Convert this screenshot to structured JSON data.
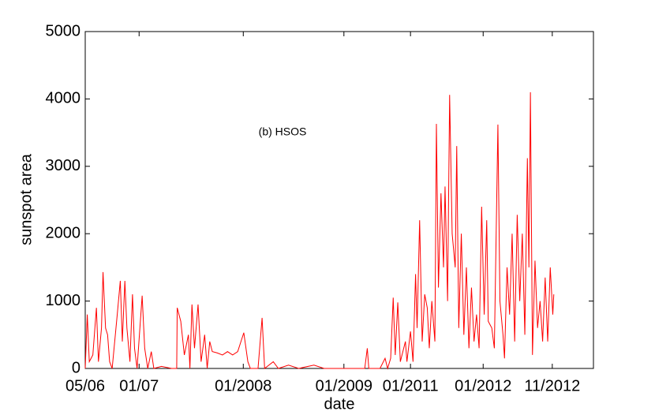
{
  "chart_data": {
    "type": "line",
    "annotation": "(b) HSOS",
    "xlabel": "date",
    "ylabel": "sunspot area",
    "xlim": [
      0,
      100
    ],
    "ylim": [
      0,
      5000
    ],
    "xticks": [
      {
        "value": 0,
        "label": "05/06"
      },
      {
        "value": 10.6,
        "label": "01/07"
      },
      {
        "value": 31.1,
        "label": "01/2008"
      },
      {
        "value": 50.9,
        "label": "01/2009"
      },
      {
        "value": 64.0,
        "label": "01/2011"
      },
      {
        "value": 78.3,
        "label": "01/2012"
      },
      {
        "value": 91.9,
        "label": "11/2012"
      }
    ],
    "yticks": [
      0,
      1000,
      2000,
      3000,
      4000,
      5000
    ],
    "series": [
      {
        "color": "#ff0000",
        "x": [
          0,
          0.4,
          0.8,
          1.5,
          2.2,
          2.6,
          3.2,
          3.5,
          4.0,
          4.4,
          4.8,
          5.3,
          6.3,
          6.9,
          7.3,
          7.8,
          8.2,
          8.8,
          9.3,
          9.7,
          10.2,
          11.2,
          11.7,
          12.3,
          13,
          13.5,
          15,
          17,
          18,
          18.1,
          18.8,
          19.5,
          20.3,
          20.6,
          21.0,
          21.5,
          22.2,
          22.8,
          23.5,
          24,
          24.5,
          25,
          26,
          27,
          28,
          29,
          30,
          31.2,
          32,
          32.5,
          34,
          34.8,
          35.3,
          37,
          38,
          40,
          42,
          45,
          47,
          50,
          52,
          55,
          55.5,
          55.8,
          58,
          59,
          59.5,
          60.1,
          60.6,
          61,
          61.5,
          62,
          63,
          63.3,
          64,
          64.5,
          65,
          65.3,
          65.8,
          66.3,
          66.8,
          67.3,
          67.7,
          68.2,
          68.8,
          69.1,
          69.5,
          70,
          70.5,
          70.8,
          71.3,
          71.7,
          72.2,
          72.8,
          73.1,
          73.5,
          74,
          74.5,
          75,
          75.5,
          76,
          76.5,
          77,
          77.5,
          78,
          78.5,
          79,
          79.3,
          80,
          80.5,
          81.2,
          81.6,
          82.2,
          82.5,
          83,
          83.5,
          84,
          84.5,
          85,
          85.5,
          86,
          86.5,
          87,
          87.3,
          87.6,
          88,
          88.5,
          89,
          89.5,
          90,
          90.5,
          91,
          91.5,
          92,
          92.2
        ],
        "values": [
          0,
          800,
          100,
          200,
          900,
          100,
          600,
          1430,
          600,
          500,
          100,
          0,
          800,
          1300,
          400,
          1300,
          600,
          100,
          1100,
          300,
          0,
          1080,
          300,
          0,
          250,
          0,
          30,
          0,
          0,
          900,
          700,
          200,
          500,
          0,
          950,
          300,
          950,
          100,
          500,
          0,
          400,
          250,
          230,
          200,
          250,
          200,
          250,
          530,
          100,
          0,
          0,
          750,
          0,
          100,
          0,
          50,
          0,
          50,
          0,
          0,
          0,
          0,
          300,
          0,
          0,
          150,
          0,
          150,
          1050,
          200,
          980,
          100,
          400,
          100,
          550,
          100,
          1400,
          600,
          2200,
          400,
          1100,
          900,
          300,
          1000,
          400,
          3630,
          1200,
          2600,
          1500,
          2700,
          1000,
          4060,
          2000,
          1500,
          3300,
          600,
          2000,
          500,
          1500,
          300,
          1200,
          400,
          800,
          300,
          2400,
          800,
          2200,
          700,
          600,
          300,
          3620,
          1000,
          500,
          150,
          1500,
          800,
          2000,
          400,
          2280,
          1000,
          2000,
          500,
          3120,
          1500,
          4100,
          200,
          1600,
          600,
          1000,
          400,
          1350,
          400,
          1500,
          800,
          1100
        ]
      }
    ]
  }
}
